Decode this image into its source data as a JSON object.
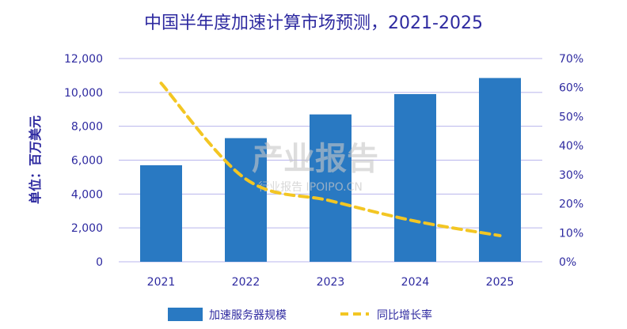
{
  "colors": {
    "bar": "#2979c2",
    "line": "#f3c623",
    "grid": "#b8b4ec",
    "text": "#2e2aa0"
  },
  "watermark": {
    "main": "产业报告",
    "sub": "行业报告 IPOIPO.CN"
  },
  "chart_data": {
    "type": "bar",
    "title": "中国半年度加速计算市场预测，2021-2025",
    "ylabel": "单位：百万美元",
    "xlabel": "",
    "categories": [
      "2021",
      "2022",
      "2023",
      "2024",
      "2025"
    ],
    "ylim": [
      0,
      12000
    ],
    "y_ticks": [
      "0",
      "2,000",
      "4,000",
      "6,000",
      "8,000",
      "10,000",
      "12,000"
    ],
    "y2lim": [
      0,
      70
    ],
    "y2_ticks": [
      "0%",
      "10%",
      "20%",
      "30%",
      "40%",
      "50%",
      "60%",
      "70%"
    ],
    "series": [
      {
        "name": "加速服务器规模",
        "type": "bar",
        "axis": "left",
        "values": [
          5700,
          7300,
          8700,
          9900,
          10850
        ]
      },
      {
        "name": "同比增长率",
        "type": "line",
        "axis": "right",
        "style": "dashed",
        "values": [
          61.5,
          28.5,
          21,
          14,
          9
        ]
      }
    ],
    "grid": true,
    "legend": "bottom-center"
  }
}
